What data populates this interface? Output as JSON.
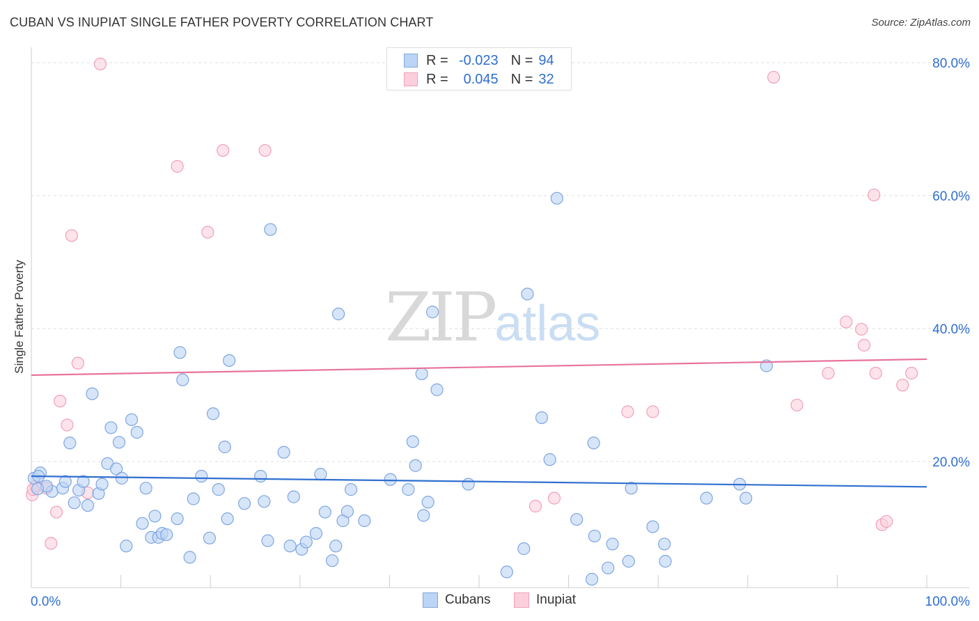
{
  "header": {
    "title": "CUBAN VS INUPIAT SINGLE FATHER POVERTY CORRELATION CHART",
    "source": "Source: ZipAtlas.com"
  },
  "watermark": {
    "zip": "ZIP",
    "atlas": "atlas"
  },
  "legend": {
    "cubans": {
      "r_label": "R =",
      "r_value": "-0.023",
      "n_label": "N =",
      "n_value": "94"
    },
    "inupiat": {
      "r_label": "R =",
      "r_value": "0.045",
      "n_label": "N =",
      "n_value": "32"
    }
  },
  "bottom_legend": {
    "cubans": "Cubans",
    "inupiat": "Inupiat"
  },
  "colors": {
    "cubans_fill": "#bcd4f5",
    "cubans_stroke": "#7ea6e0",
    "cubans_line": "#2f6fd0",
    "inupiat_fill": "#fbd0dc",
    "inupiat_stroke": "#f0a0b8",
    "inupiat_line": "#e8739a",
    "axis_label": "#2f6fd0",
    "grid": "#dddddd"
  },
  "chart_data": {
    "type": "scatter",
    "title": "CUBAN VS INUPIAT SINGLE FATHER POVERTY CORRELATION CHART",
    "xlabel": "",
    "ylabel": "Single Father Poverty",
    "xlim": [
      0,
      100
    ],
    "ylim": [
      0,
      80
    ],
    "x_tick_labels": [
      "0.0%",
      "100.0%"
    ],
    "y_ticks": [
      20,
      40,
      60,
      80
    ],
    "y_tick_labels": [
      "20.0%",
      "40.0%",
      "60.0%",
      "80.0%"
    ],
    "series": [
      {
        "name": "Cubans",
        "R": -0.023,
        "N": 94,
        "trend": {
          "y_at_x0": 17.8,
          "y_at_x100": 16.2
        },
        "points": [
          [
            0.3,
            17.5
          ],
          [
            1.0,
            18.3
          ],
          [
            0.8,
            17.8
          ],
          [
            2.3,
            15.5
          ],
          [
            1.7,
            16.3
          ],
          [
            3.5,
            16.0
          ],
          [
            3.8,
            17.0
          ],
          [
            4.3,
            22.8
          ],
          [
            4.8,
            13.8
          ],
          [
            5.3,
            15.7
          ],
          [
            5.8,
            17.0
          ],
          [
            6.3,
            13.4
          ],
          [
            6.8,
            30.2
          ],
          [
            7.5,
            15.2
          ],
          [
            7.9,
            16.6
          ],
          [
            8.5,
            19.7
          ],
          [
            8.9,
            25.1
          ],
          [
            9.5,
            18.9
          ],
          [
            9.8,
            22.9
          ],
          [
            10.1,
            17.5
          ],
          [
            10.6,
            7.3
          ],
          [
            11.2,
            26.3
          ],
          [
            11.8,
            24.4
          ],
          [
            12.4,
            10.7
          ],
          [
            12.8,
            16.0
          ],
          [
            13.4,
            8.6
          ],
          [
            13.8,
            11.8
          ],
          [
            14.2,
            8.6
          ],
          [
            14.6,
            9.2
          ],
          [
            15.1,
            9.0
          ],
          [
            16.3,
            11.4
          ],
          [
            16.6,
            36.4
          ],
          [
            16.9,
            32.3
          ],
          [
            17.7,
            5.6
          ],
          [
            18.1,
            14.4
          ],
          [
            19.0,
            17.8
          ],
          [
            19.9,
            8.5
          ],
          [
            20.3,
            27.2
          ],
          [
            20.9,
            15.8
          ],
          [
            21.6,
            22.2
          ],
          [
            21.9,
            11.4
          ],
          [
            22.1,
            35.2
          ],
          [
            23.8,
            13.7
          ],
          [
            25.6,
            17.8
          ],
          [
            26.0,
            14.0
          ],
          [
            26.4,
            8.1
          ],
          [
            26.7,
            54.9
          ],
          [
            28.2,
            21.4
          ],
          [
            28.9,
            7.3
          ],
          [
            29.3,
            14.7
          ],
          [
            30.2,
            6.8
          ],
          [
            30.7,
            7.9
          ],
          [
            31.8,
            9.2
          ],
          [
            32.3,
            18.1
          ],
          [
            32.8,
            12.4
          ],
          [
            33.6,
            5.1
          ],
          [
            34.0,
            7.3
          ],
          [
            34.3,
            42.2
          ],
          [
            34.8,
            11.1
          ],
          [
            35.3,
            12.5
          ],
          [
            35.7,
            15.8
          ],
          [
            37.2,
            11.1
          ],
          [
            40.1,
            17.3
          ],
          [
            42.1,
            15.8
          ],
          [
            42.6,
            23.0
          ],
          [
            42.9,
            19.4
          ],
          [
            43.6,
            33.2
          ],
          [
            43.8,
            11.9
          ],
          [
            44.3,
            13.9
          ],
          [
            44.8,
            42.5
          ],
          [
            45.3,
            30.8
          ],
          [
            48.8,
            16.6
          ],
          [
            53.1,
            3.4
          ],
          [
            55.0,
            6.9
          ],
          [
            55.4,
            45.2
          ],
          [
            57.0,
            26.6
          ],
          [
            57.9,
            20.3
          ],
          [
            58.7,
            59.6
          ],
          [
            60.9,
            11.3
          ],
          [
            62.6,
            2.3
          ],
          [
            62.8,
            22.8
          ],
          [
            62.9,
            8.8
          ],
          [
            64.4,
            4.0
          ],
          [
            64.9,
            7.6
          ],
          [
            66.7,
            5.0
          ],
          [
            67.0,
            16.0
          ],
          [
            69.4,
            10.2
          ],
          [
            70.7,
            7.6
          ],
          [
            70.8,
            5.0
          ],
          [
            75.4,
            14.5
          ],
          [
            79.1,
            16.6
          ],
          [
            79.8,
            14.5
          ],
          [
            82.1,
            34.4
          ],
          [
            0.7,
            15.9
          ]
        ]
      },
      {
        "name": "Inupiat",
        "R": 0.045,
        "N": 32,
        "trend": {
          "y_at_x0": 33.0,
          "y_at_x100": 35.4
        },
        "points": [
          [
            0.1,
            15.0
          ],
          [
            0.5,
            16.3
          ],
          [
            1.7,
            16.0
          ],
          [
            2.2,
            7.7
          ],
          [
            2.8,
            12.4
          ],
          [
            3.2,
            29.1
          ],
          [
            4.0,
            25.5
          ],
          [
            4.5,
            54.0
          ],
          [
            5.2,
            34.8
          ],
          [
            6.3,
            15.3
          ],
          [
            7.7,
            79.8
          ],
          [
            16.3,
            64.4
          ],
          [
            19.7,
            54.5
          ],
          [
            21.4,
            66.8
          ],
          [
            26.1,
            66.8
          ],
          [
            56.3,
            13.3
          ],
          [
            58.4,
            14.5
          ],
          [
            66.6,
            27.5
          ],
          [
            69.4,
            27.5
          ],
          [
            85.5,
            28.5
          ],
          [
            82.9,
            77.8
          ],
          [
            89.0,
            33.3
          ],
          [
            91.0,
            41.0
          ],
          [
            92.7,
            39.9
          ],
          [
            94.1,
            60.1
          ],
          [
            93.0,
            37.5
          ],
          [
            95.0,
            10.5
          ],
          [
            95.5,
            11.0
          ],
          [
            94.3,
            33.3
          ],
          [
            97.3,
            31.5
          ],
          [
            98.3,
            33.3
          ],
          [
            0.2,
            15.8
          ]
        ]
      }
    ]
  }
}
